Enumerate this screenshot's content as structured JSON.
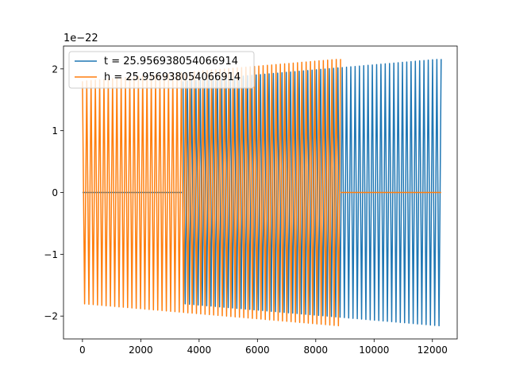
{
  "chart_data": {
    "type": "line",
    "title": "",
    "xlabel": "",
    "ylabel": "",
    "y_scale_label": "1e−22",
    "xlim": [
      -650,
      12850
    ],
    "ylim": [
      -2.37,
      2.37
    ],
    "x_ticks": [
      0,
      2000,
      4000,
      6000,
      8000,
      10000,
      12000
    ],
    "x_tick_labels": [
      "0",
      "2000",
      "4000",
      "6000",
      "8000",
      "10000",
      "12000"
    ],
    "y_ticks": [
      -2,
      -1,
      0,
      1,
      2
    ],
    "y_tick_labels": [
      "−2",
      "−1",
      "0",
      "1",
      "2"
    ],
    "grid": false,
    "legend_position": "upper-left",
    "series": [
      {
        "name": "t = 25.956938054066914",
        "color": "#1f77b4",
        "segments": [
          {
            "kind": "flat",
            "x_start": 0,
            "x_end": 3450,
            "y": 0
          },
          {
            "kind": "oscillation",
            "x_start": 3450,
            "x_end": 12300,
            "amplitude_start": 1.8,
            "amplitude_end": 2.16,
            "cycles": 60
          }
        ]
      },
      {
        "name": "h = 25.956938054066914",
        "color": "#ff7f0e",
        "segments": [
          {
            "kind": "oscillation",
            "x_start": 0,
            "x_end": 8850,
            "amplitude_start": 1.8,
            "amplitude_end": 2.16,
            "cycles": 60
          },
          {
            "kind": "flat",
            "x_start": 8850,
            "x_end": 12300,
            "y": 0
          }
        ]
      }
    ]
  }
}
